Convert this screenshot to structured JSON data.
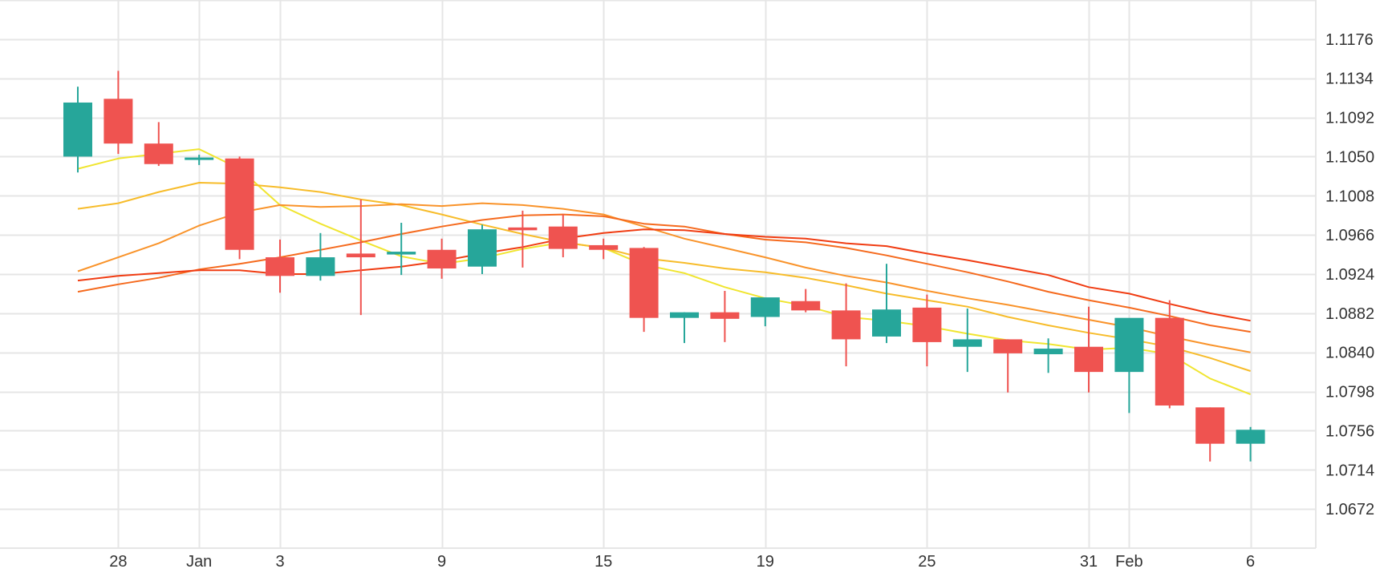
{
  "colors": {
    "up": "#26a69a",
    "down": "#ef5350",
    "grid": "#e6e6e6",
    "axis_text": "#333333",
    "background": "#ffffff"
  },
  "chart_data": {
    "type": "candlestick",
    "grid": true,
    "y_axis_position": "right",
    "ylim": [
      1.063,
      1.1218
    ],
    "y_ticks": [
      "1.1176",
      "1.1134",
      "1.1092",
      "1.1050",
      "1.1008",
      "1.0966",
      "1.0924",
      "1.0882",
      "1.0840",
      "1.0798",
      "1.0756",
      "1.0714",
      "1.0672"
    ],
    "x_ticks": [
      {
        "x": 1,
        "label": "28"
      },
      {
        "x": 3,
        "label": "Jan"
      },
      {
        "x": 5,
        "label": "3"
      },
      {
        "x": 9,
        "label": "9"
      },
      {
        "x": 13,
        "label": "15"
      },
      {
        "x": 17,
        "label": "19"
      },
      {
        "x": 21,
        "label": "25"
      },
      {
        "x": 25,
        "label": "31"
      },
      {
        "x": 26,
        "label": "Feb"
      },
      {
        "x": 29,
        "label": "6"
      }
    ],
    "candles": [
      {
        "x": 0,
        "o": 1.105,
        "h": 1.1125,
        "l": 1.1033,
        "c": 1.1108
      },
      {
        "x": 1,
        "o": 1.1112,
        "h": 1.1142,
        "l": 1.1053,
        "c": 1.1064
      },
      {
        "x": 2,
        "o": 1.1064,
        "h": 1.1087,
        "l": 1.104,
        "c": 1.1042
      },
      {
        "x": 3,
        "o": 1.1047,
        "h": 1.1052,
        "l": 1.1041,
        "c": 1.1049
      },
      {
        "x": 4,
        "o": 1.1048,
        "h": 1.105,
        "l": 1.094,
        "c": 1.095
      },
      {
        "x": 5,
        "o": 1.0942,
        "h": 1.0961,
        "l": 1.0904,
        "c": 1.0922
      },
      {
        "x": 6,
        "o": 1.0922,
        "h": 1.0968,
        "l": 1.0917,
        "c": 1.0942
      },
      {
        "x": 7,
        "o": 1.0946,
        "h": 1.1004,
        "l": 1.088,
        "c": 1.0942
      },
      {
        "x": 8,
        "o": 1.0945,
        "h": 1.0979,
        "l": 1.0923,
        "c": 1.0948
      },
      {
        "x": 9,
        "o": 1.095,
        "h": 1.0962,
        "l": 1.0919,
        "c": 1.093
      },
      {
        "x": 10,
        "o": 1.0932,
        "h": 1.0977,
        "l": 1.0924,
        "c": 1.0972
      },
      {
        "x": 11,
        "o": 1.0974,
        "h": 1.0992,
        "l": 1.0931,
        "c": 1.0971
      },
      {
        "x": 12,
        "o": 1.0975,
        "h": 1.0988,
        "l": 1.0942,
        "c": 1.0951
      },
      {
        "x": 13,
        "o": 1.0955,
        "h": 1.0962,
        "l": 1.094,
        "c": 1.095
      },
      {
        "x": 14,
        "o": 1.0952,
        "h": 1.0953,
        "l": 1.0862,
        "c": 1.0877
      },
      {
        "x": 15,
        "o": 1.0877,
        "h": 1.0883,
        "l": 1.085,
        "c": 1.0883
      },
      {
        "x": 16,
        "o": 1.0883,
        "h": 1.0906,
        "l": 1.0851,
        "c": 1.0876
      },
      {
        "x": 17,
        "o": 1.0878,
        "h": 1.0898,
        "l": 1.0868,
        "c": 1.0899
      },
      {
        "x": 18,
        "o": 1.0895,
        "h": 1.0908,
        "l": 1.0883,
        "c": 1.0885
      },
      {
        "x": 19,
        "o": 1.0885,
        "h": 1.0914,
        "l": 1.0825,
        "c": 1.0854
      },
      {
        "x": 20,
        "o": 1.0857,
        "h": 1.0935,
        "l": 1.085,
        "c": 1.0886
      },
      {
        "x": 21,
        "o": 1.0888,
        "h": 1.0902,
        "l": 1.0825,
        "c": 1.0851
      },
      {
        "x": 22,
        "o": 1.0846,
        "h": 1.0887,
        "l": 1.0819,
        "c": 1.0854
      },
      {
        "x": 23,
        "o": 1.0854,
        "h": 1.0854,
        "l": 1.0797,
        "c": 1.0839
      },
      {
        "x": 24,
        "o": 1.0838,
        "h": 1.0855,
        "l": 1.0818,
        "c": 1.0844
      },
      {
        "x": 25,
        "o": 1.0846,
        "h": 1.0889,
        "l": 1.0797,
        "c": 1.0819
      },
      {
        "x": 26,
        "o": 1.0819,
        "h": 1.0872,
        "l": 1.0775,
        "c": 1.0877
      },
      {
        "x": 27,
        "o": 1.0877,
        "h": 1.0896,
        "l": 1.078,
        "c": 1.0783
      },
      {
        "x": 28,
        "o": 1.0781,
        "h": 1.0781,
        "l": 1.0723,
        "c": 1.0742
      },
      {
        "x": 29,
        "o": 1.0742,
        "h": 1.076,
        "l": 1.0723,
        "c": 1.0757
      }
    ],
    "moving_averages": [
      {
        "color": "#f0e530",
        "points": [
          [
            0,
            1.1037
          ],
          [
            1,
            1.1048
          ],
          [
            2,
            1.1053
          ],
          [
            3,
            1.1058
          ],
          [
            4,
            1.1037
          ],
          [
            5,
            1.0998
          ],
          [
            6,
            1.0978
          ],
          [
            7,
            1.096
          ],
          [
            8,
            1.0943
          ],
          [
            9,
            1.0935
          ],
          [
            10,
            1.0941
          ],
          [
            11,
            1.0951
          ],
          [
            12,
            1.0958
          ],
          [
            13,
            1.0952
          ],
          [
            14,
            1.0934
          ],
          [
            15,
            1.0925
          ],
          [
            16,
            1.091
          ],
          [
            17,
            1.0898
          ],
          [
            18,
            1.089
          ],
          [
            19,
            1.0878
          ],
          [
            20,
            1.0874
          ],
          [
            21,
            1.0868
          ],
          [
            22,
            1.086
          ],
          [
            23,
            1.0853
          ],
          [
            24,
            1.0849
          ],
          [
            25,
            1.0843
          ],
          [
            26,
            1.0845
          ],
          [
            27,
            1.0838
          ],
          [
            28,
            1.0812
          ],
          [
            29,
            1.0795
          ]
        ]
      },
      {
        "color": "#f7bc2a",
        "points": [
          [
            0,
            1.0994
          ],
          [
            1,
            1.1
          ],
          [
            2,
            1.1012
          ],
          [
            3,
            1.1022
          ],
          [
            4,
            1.1021
          ],
          [
            5,
            1.1017
          ],
          [
            6,
            1.1012
          ],
          [
            7,
            1.1004
          ],
          [
            8,
            1.0998
          ],
          [
            9,
            1.0988
          ],
          [
            10,
            1.0977
          ],
          [
            11,
            1.0967
          ],
          [
            12,
            1.0958
          ],
          [
            13,
            1.0952
          ],
          [
            14,
            1.0941
          ],
          [
            15,
            1.0936
          ],
          [
            16,
            1.093
          ],
          [
            17,
            1.0926
          ],
          [
            18,
            1.092
          ],
          [
            19,
            1.0912
          ],
          [
            20,
            1.0903
          ],
          [
            21,
            1.0896
          ],
          [
            22,
            1.0889
          ],
          [
            23,
            1.0878
          ],
          [
            24,
            1.0869
          ],
          [
            25,
            1.0861
          ],
          [
            26,
            1.0854
          ],
          [
            27,
            1.0846
          ],
          [
            28,
            1.0834
          ],
          [
            29,
            1.082
          ]
        ]
      },
      {
        "color": "#f9932a",
        "points": [
          [
            0,
            1.0927
          ],
          [
            1,
            1.0942
          ],
          [
            2,
            1.0957
          ],
          [
            3,
            1.0976
          ],
          [
            4,
            1.099
          ],
          [
            5,
            1.0998
          ],
          [
            6,
            1.0996
          ],
          [
            7,
            1.0997
          ],
          [
            8,
            1.0999
          ],
          [
            9,
            1.0997
          ],
          [
            10,
            1.1
          ],
          [
            11,
            1.0998
          ],
          [
            12,
            1.0994
          ],
          [
            13,
            1.0988
          ],
          [
            14,
            1.0975
          ],
          [
            15,
            1.0962
          ],
          [
            16,
            1.0952
          ],
          [
            17,
            1.0942
          ],
          [
            18,
            1.0931
          ],
          [
            19,
            1.0922
          ],
          [
            20,
            1.0915
          ],
          [
            21,
            1.0906
          ],
          [
            22,
            1.0898
          ],
          [
            23,
            1.0891
          ],
          [
            24,
            1.0883
          ],
          [
            25,
            1.0875
          ],
          [
            26,
            1.0867
          ],
          [
            27,
            1.0857
          ],
          [
            28,
            1.0848
          ],
          [
            29,
            1.084
          ]
        ]
      },
      {
        "color": "#f56a1e",
        "points": [
          [
            0,
            1.0905
          ],
          [
            1,
            1.0913
          ],
          [
            2,
            1.092
          ],
          [
            3,
            1.0929
          ],
          [
            4,
            1.0935
          ],
          [
            5,
            1.0942
          ],
          [
            6,
            1.095
          ],
          [
            7,
            1.0958
          ],
          [
            8,
            1.0967
          ],
          [
            9,
            1.0975
          ],
          [
            10,
            1.0982
          ],
          [
            11,
            1.0987
          ],
          [
            12,
            1.0988
          ],
          [
            13,
            1.0986
          ],
          [
            14,
            1.0978
          ],
          [
            15,
            1.0975
          ],
          [
            16,
            1.0967
          ],
          [
            17,
            1.0961
          ],
          [
            18,
            1.0958
          ],
          [
            19,
            1.0952
          ],
          [
            20,
            1.0944
          ],
          [
            21,
            1.0935
          ],
          [
            22,
            1.0926
          ],
          [
            23,
            1.0916
          ],
          [
            24,
            1.0905
          ],
          [
            25,
            1.0896
          ],
          [
            26,
            1.0888
          ],
          [
            27,
            1.0879
          ],
          [
            28,
            1.0869
          ],
          [
            29,
            1.0862
          ]
        ]
      },
      {
        "color": "#f03c12",
        "points": [
          [
            0,
            1.0917
          ],
          [
            1,
            1.0922
          ],
          [
            2,
            1.0925
          ],
          [
            3,
            1.0928
          ],
          [
            4,
            1.0928
          ],
          [
            5,
            1.0924
          ],
          [
            6,
            1.0924
          ],
          [
            7,
            1.0928
          ],
          [
            8,
            1.0932
          ],
          [
            9,
            1.0938
          ],
          [
            10,
            1.0946
          ],
          [
            11,
            1.0953
          ],
          [
            12,
            1.0962
          ],
          [
            13,
            1.0968
          ],
          [
            14,
            1.0972
          ],
          [
            15,
            1.0971
          ],
          [
            16,
            1.0967
          ],
          [
            17,
            1.0964
          ],
          [
            18,
            1.0962
          ],
          [
            19,
            1.0957
          ],
          [
            20,
            1.0954
          ],
          [
            21,
            1.0946
          ],
          [
            22,
            1.0939
          ],
          [
            23,
            1.0931
          ],
          [
            24,
            1.0923
          ],
          [
            25,
            1.091
          ],
          [
            26,
            1.0903
          ],
          [
            27,
            1.0892
          ],
          [
            28,
            1.0882
          ],
          [
            29,
            1.0874
          ]
        ]
      }
    ]
  }
}
